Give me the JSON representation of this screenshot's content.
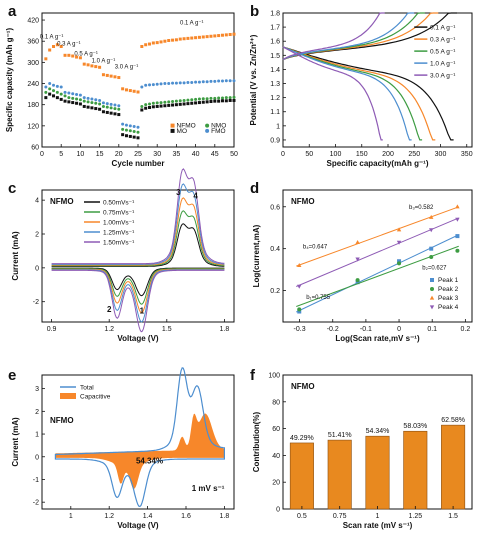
{
  "chart_data": [
    {
      "letter": "a",
      "type": "scatter",
      "xlabel": "Cycle number",
      "ylabel": "Specific capacity (mAh g⁻¹)",
      "xlim": [
        0,
        50
      ],
      "ylim": [
        60,
        440
      ],
      "xticks": [
        0,
        5,
        10,
        15,
        20,
        25,
        30,
        35,
        40,
        45,
        50
      ],
      "yticks": [
        60,
        120,
        180,
        240,
        300,
        360,
        420
      ],
      "rate_labels": [
        {
          "text": "0.1 A g⁻¹",
          "x": 2.5,
          "y": 368
        },
        {
          "text": "0.3 A g⁻¹",
          "x": 7,
          "y": 348
        },
        {
          "text": "0.5 A g⁻¹",
          "x": 11.5,
          "y": 320
        },
        {
          "text": "1.0 A g⁻¹",
          "x": 16,
          "y": 300
        },
        {
          "text": "3.0 A g⁻¹",
          "x": 22,
          "y": 283
        },
        {
          "text": "0.1 A g⁻¹",
          "x": 39,
          "y": 407
        }
      ],
      "series": [
        {
          "name": "NFMO",
          "color": "#f7872a",
          "shape": "square",
          "values": [
            310,
            335,
            345,
            350,
            345,
            320,
            320,
            318,
            315,
            313,
            295,
            293,
            290,
            288,
            286,
            265,
            263,
            261,
            259,
            257,
            225,
            222,
            220,
            218,
            216,
            345,
            350,
            352,
            355,
            356,
            358,
            360,
            362,
            363,
            364,
            366,
            367,
            368,
            369,
            370,
            371,
            372,
            373,
            374,
            375,
            376,
            377,
            378,
            379,
            380
          ]
        },
        {
          "name": "NMO",
          "color": "#3d9c42",
          "shape": "circle",
          "values": [
            215,
            225,
            220,
            215,
            210,
            205,
            200,
            198,
            196,
            194,
            190,
            188,
            186,
            184,
            182,
            175,
            173,
            171,
            169,
            167,
            110,
            108,
            106,
            104,
            102,
            175,
            180,
            182,
            184,
            185,
            186,
            187,
            188,
            189,
            190,
            191,
            192,
            193,
            194,
            195,
            196,
            197,
            197,
            198,
            198,
            199,
            199,
            200,
            200,
            201
          ]
        },
        {
          "name": "MO",
          "color": "#111111",
          "shape": "square",
          "values": [
            200,
            210,
            205,
            200,
            195,
            190,
            188,
            186,
            184,
            182,
            175,
            173,
            171,
            169,
            167,
            160,
            158,
            156,
            154,
            152,
            95,
            92,
            90,
            88,
            86,
            165,
            170,
            172,
            174,
            175,
            176,
            177,
            178,
            179,
            180,
            181,
            182,
            183,
            184,
            185,
            186,
            187,
            188,
            189,
            190,
            190,
            191,
            191,
            192,
            192
          ]
        },
        {
          "name": "FMO",
          "color": "#4d8ecf",
          "shape": "circle",
          "values": [
            230,
            240,
            235,
            232,
            230,
            215,
            213,
            211,
            209,
            207,
            200,
            198,
            196,
            194,
            192,
            185,
            183,
            181,
            179,
            177,
            125,
            122,
            120,
            118,
            116,
            230,
            235,
            236,
            237,
            238,
            239,
            240,
            240,
            241,
            241,
            242,
            242,
            243,
            243,
            244,
            244,
            245,
            245,
            246,
            246,
            247,
            247,
            248,
            248,
            248
          ]
        }
      ]
    },
    {
      "letter": "b",
      "type": "line",
      "xlabel": "Specific capacity(mAh g⁻¹)",
      "ylabel": "Potential (V vs. Zn/Zn²⁺)",
      "xlim": [
        0,
        360
      ],
      "ylim": [
        0.85,
        1.8
      ],
      "xticks": [
        0,
        50,
        100,
        150,
        200,
        250,
        300,
        350
      ],
      "yticks": [
        0.9,
        1.0,
        1.1,
        1.2,
        1.3,
        1.4,
        1.5,
        1.6,
        1.7,
        1.8
      ],
      "series": [
        {
          "name": "0.1 A g⁻¹",
          "color": "#111111",
          "capacity": 325
        },
        {
          "name": "0.3 A g⁻¹",
          "color": "#f7872a",
          "capacity": 290
        },
        {
          "name": "0.5 A g⁻¹",
          "color": "#3d9c42",
          "capacity": 265
        },
        {
          "name": "1.0 A g⁻¹",
          "color": "#4d8ecf",
          "capacity": 245
        },
        {
          "name": "3.0 A g⁻¹",
          "color": "#8e5bb5",
          "capacity": 190
        }
      ]
    },
    {
      "letter": "c",
      "type": "line",
      "title": "NFMO",
      "xlabel": "Voltage (V)",
      "ylabel": "Current (mA)",
      "xlim": [
        0.85,
        1.85
      ],
      "ylim": [
        -3.2,
        4.6
      ],
      "xticks": [
        0.9,
        1.2,
        1.5,
        1.8
      ],
      "yticks": [
        -2,
        0,
        2,
        4
      ],
      "peak_labels": [
        {
          "text": "1",
          "x": 1.37,
          "y": -2.7
        },
        {
          "text": "2",
          "x": 1.2,
          "y": -2.6
        },
        {
          "text": "3",
          "x": 1.56,
          "y": 4.3
        },
        {
          "text": "4",
          "x": 1.65,
          "y": 4.1
        }
      ],
      "series": [
        {
          "name": "0.50mVs⁻¹",
          "color": "#111111",
          "scale": 0.45
        },
        {
          "name": "0.75mVs⁻¹",
          "color": "#3d9c42",
          "scale": 0.58
        },
        {
          "name": "1.00mVs⁻¹",
          "color": "#f7872a",
          "scale": 0.71
        },
        {
          "name": "1.25mVs⁻¹",
          "color": "#4d8ecf",
          "scale": 0.85
        },
        {
          "name": "1.50mVs⁻¹",
          "color": "#8e5bb5",
          "scale": 1.0
        }
      ]
    },
    {
      "letter": "d",
      "type": "scatter",
      "title": "NFMO",
      "xlabel": "Log(Scan rate,mV s⁻¹)",
      "ylabel": "Log(current,mA)",
      "xlim": [
        -0.35,
        0.22
      ],
      "ylim": [
        0.05,
        0.68
      ],
      "xticks": [
        -0.3,
        -0.2,
        -0.1,
        0.0,
        0.1,
        0.2
      ],
      "yticks": [
        0.2,
        0.4,
        0.6
      ],
      "x": [
        -0.301,
        -0.125,
        0,
        0.097,
        0.176
      ],
      "b_labels": [
        {
          "text": "b₁=0.755",
          "x": -0.28,
          "y": 0.16,
          "color": "#4d8ecf"
        },
        {
          "text": "b₂=0.627",
          "x": 0.07,
          "y": 0.3,
          "color": "#3d9c42"
        },
        {
          "text": "b₃=0.582",
          "x": 0.03,
          "y": 0.59,
          "color": "#f7872a"
        },
        {
          "text": "b₄=0.647",
          "x": -0.29,
          "y": 0.4,
          "color": "#8e5bb5"
        }
      ],
      "series": [
        {
          "name": "Peak 1",
          "color": "#4d8ecf",
          "shape": "square",
          "values": [
            0.1,
            0.24,
            0.34,
            0.4,
            0.46
          ]
        },
        {
          "name": "Peak 2",
          "color": "#3d9c42",
          "shape": "circle",
          "values": [
            0.11,
            0.25,
            0.33,
            0.36,
            0.39
          ]
        },
        {
          "name": "Peak 3",
          "color": "#f7872a",
          "shape": "triangle",
          "values": [
            0.32,
            0.43,
            0.49,
            0.55,
            0.6
          ]
        },
        {
          "name": "Peak 4",
          "color": "#8e5bb5",
          "shape": "triangle-down",
          "values": [
            0.22,
            0.35,
            0.43,
            0.49,
            0.54
          ]
        }
      ]
    },
    {
      "letter": "e",
      "type": "area",
      "title": "NFMO",
      "annotation": "54.34%",
      "rate_note": "1 mV s⁻¹",
      "xlabel": "Voltage (V)",
      "ylabel": "Current (mA)",
      "xlim": [
        0.85,
        1.85
      ],
      "ylim": [
        -2.3,
        3.6
      ],
      "xticks": [
        1.0,
        1.2,
        1.4,
        1.6,
        1.8
      ],
      "yticks": [
        -2,
        -1,
        0,
        1,
        2,
        3
      ],
      "series": [
        {
          "name": "Total",
          "color": "#4d8ecf"
        },
        {
          "name": "Capacitive",
          "color": "#f7872a"
        }
      ]
    },
    {
      "letter": "f",
      "type": "bar",
      "title": "NFMO",
      "xlabel": "Scan rate (mV s⁻¹)",
      "ylabel": "Contribution(%)",
      "ylim": [
        0,
        100
      ],
      "yticks": [
        0,
        20,
        40,
        60,
        80,
        100
      ],
      "categories": [
        "0.5",
        "0.75",
        "1",
        "1.25",
        "1.5"
      ],
      "values": [
        49.29,
        51.41,
        54.34,
        58.03,
        62.58
      ],
      "value_labels": [
        "49.29%",
        "51.41%",
        "54.34%",
        "58.03%",
        "62.58%"
      ],
      "bar_color": "#e8891f"
    }
  ]
}
